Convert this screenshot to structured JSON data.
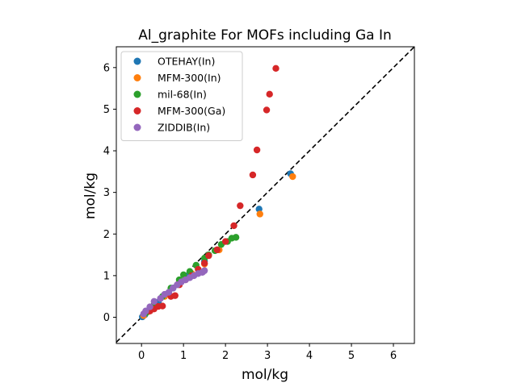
{
  "chart_data": {
    "type": "scatter",
    "title": "Al_graphite For MOFs including Ga In",
    "xlabel": "mol/kg",
    "ylabel": "mol/kg",
    "xlim": [
      -0.6,
      6.5
    ],
    "ylim": [
      -0.63,
      6.5
    ],
    "xticks": [
      0,
      1,
      2,
      3,
      4,
      5,
      6
    ],
    "yticks": [
      0,
      1,
      2,
      3,
      4,
      5,
      6
    ],
    "grid": false,
    "legend_position": "top-left",
    "reference_line": "y = x (dashed black)",
    "series": [
      {
        "name": "OTEHAY(In)",
        "color": "#1f77b4",
        "points": [
          [
            0.02,
            0.01
          ],
          [
            0.08,
            0.06
          ],
          [
            0.2,
            0.17
          ],
          [
            0.4,
            0.36
          ],
          [
            0.75,
            0.7
          ],
          [
            1.1,
            1.0
          ],
          [
            1.5,
            1.35
          ],
          [
            2.8,
            2.6
          ],
          [
            3.55,
            3.45
          ]
        ]
      },
      {
        "name": "MFM-300(In)",
        "color": "#ff7f0e",
        "points": [
          [
            0.05,
            0.04
          ],
          [
            0.15,
            0.13
          ],
          [
            0.3,
            0.27
          ],
          [
            0.55,
            0.5
          ],
          [
            0.9,
            0.85
          ],
          [
            1.2,
            1.05
          ],
          [
            1.5,
            1.28
          ],
          [
            1.85,
            1.62
          ],
          [
            2.82,
            2.48
          ],
          [
            3.6,
            3.38
          ]
        ]
      },
      {
        "name": "mil-68(In)",
        "color": "#2ca02c",
        "points": [
          [
            0.1,
            0.1
          ],
          [
            0.3,
            0.3
          ],
          [
            0.5,
            0.5
          ],
          [
            0.7,
            0.7
          ],
          [
            0.9,
            0.9
          ],
          [
            1.0,
            1.02
          ],
          [
            1.15,
            1.1
          ],
          [
            1.3,
            1.25
          ],
          [
            1.5,
            1.42
          ],
          [
            1.6,
            1.5
          ],
          [
            1.75,
            1.6
          ],
          [
            1.9,
            1.75
          ],
          [
            2.05,
            1.82
          ],
          [
            2.15,
            1.9
          ],
          [
            2.25,
            1.92
          ]
        ]
      },
      {
        "name": "MFM-300(Ga)",
        "color": "#d62728",
        "points": [
          [
            0.2,
            0.15
          ],
          [
            0.3,
            0.2
          ],
          [
            0.4,
            0.26
          ],
          [
            0.5,
            0.27
          ],
          [
            0.7,
            0.5
          ],
          [
            0.8,
            0.52
          ],
          [
            0.9,
            0.78
          ],
          [
            1.05,
            0.9
          ],
          [
            1.2,
            1.0
          ],
          [
            1.35,
            1.15
          ],
          [
            1.5,
            1.3
          ],
          [
            1.6,
            1.48
          ],
          [
            1.8,
            1.62
          ],
          [
            2.0,
            1.82
          ],
          [
            2.2,
            2.2
          ],
          [
            2.35,
            2.68
          ],
          [
            2.65,
            3.42
          ],
          [
            2.75,
            4.02
          ],
          [
            2.98,
            4.98
          ],
          [
            3.05,
            5.36
          ],
          [
            3.2,
            5.98
          ]
        ]
      },
      {
        "name": "ZIDDIB(In)",
        "color": "#9467bd",
        "points": [
          [
            0.05,
            0.08
          ],
          [
            0.1,
            0.15
          ],
          [
            0.2,
            0.25
          ],
          [
            0.3,
            0.38
          ],
          [
            0.45,
            0.45
          ],
          [
            0.55,
            0.55
          ],
          [
            0.65,
            0.6
          ],
          [
            0.75,
            0.7
          ],
          [
            0.85,
            0.78
          ],
          [
            0.95,
            0.85
          ],
          [
            1.05,
            0.9
          ],
          [
            1.15,
            0.95
          ],
          [
            1.25,
            1.0
          ],
          [
            1.35,
            1.05
          ],
          [
            1.45,
            1.08
          ],
          [
            1.5,
            1.12
          ]
        ]
      }
    ]
  }
}
